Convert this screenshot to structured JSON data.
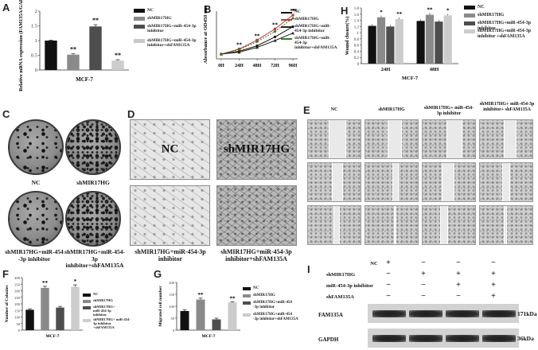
{
  "panel_letters": [
    "A",
    "B",
    "H",
    "C",
    "D",
    "E",
    "F",
    "G",
    "I"
  ],
  "panel_A": {
    "ylabel": "Relative mRNA expression (FAM135A/GAPDH)",
    "xlabel": "MCF-7",
    "stars": [
      "**",
      "**",
      "**"
    ],
    "legend": [
      "NC",
      "shMIR17HG",
      "shMIR17HG+miR-454-3p inhibitor",
      "shMIR17HG+miR-454-3p inhibitor+shFAM135A"
    ],
    "colors": [
      "#111111",
      "#8a8a8a",
      "#4d4d4d",
      "#c8c8c8"
    ]
  },
  "panel_B": {
    "ylabel": "Absorbance at OD450 nm",
    "legend": [
      "NC",
      "shMIR17HG",
      "shMIR17HG+miR-454-3p inhibitor",
      "shMIR17HG+miR-454-3p inhibitor+shFAM135A"
    ],
    "stars": [
      "**",
      "**",
      "**",
      "**",
      "**"
    ]
  },
  "panel_H": {
    "ylabel": "Wound closure(%)",
    "xlabel": "MCF-7",
    "stars": [
      "*",
      "**",
      "**",
      "*"
    ],
    "legend": [
      "NC",
      "shMIR17HG",
      "shMIR17HG+miR-454-3p inhibitor",
      "shMIR17HG+miR-454-3p inhibitor +shFAM135A"
    ]
  },
  "panel_C": {
    "labels": [
      "NC",
      "shMIR17HG",
      "shMIR17HG+miR-454 -3p inhibitor",
      "shMIR17HG+miR-454-3p inhibitor+shFAM135A"
    ]
  },
  "panel_D": {
    "labels": [
      "NC",
      "shMIR17HG",
      "shMIR17HG+miR-454-3p inhibitor",
      "shMIR17HG+miR-454-3p inhibitor+shFAM135A"
    ]
  },
  "panel_E": {
    "headers": [
      "NC",
      "shMIR17HG",
      "shMIR17HG+ miR-454-3p inhibitor",
      "shMIR17HG+ miR-454-3p inhibitor+ shFAM135A"
    ]
  },
  "panel_F": {
    "ylabel": "Number of Colonies",
    "xlabel": "MCF-7",
    "stars": [
      "**",
      "*"
    ],
    "legend": [
      "NC",
      "shMIR17HG",
      "shMIR17HG+ miR-454-3p inhibitor",
      "shMIR17HG+ miR-454-3p inhibitor +shFAM135A"
    ]
  },
  "panel_G": {
    "ylabel": "Migrated cell number",
    "xlabel": "MCF-7",
    "stars": [
      "**",
      "**"
    ],
    "legend": [
      "NC",
      "shMIR17HG",
      "shMIR17HG+miR-454 -3p inhibitor",
      "shMIR17HG+miR-454 -3p inhibitor+shFAM135A"
    ]
  },
  "panel_I": {
    "row_labels": [
      "NC",
      "shMIR17HG",
      "miR-454-3p inhibitor",
      "shFAM135A"
    ],
    "signs": [
      [
        "+",
        "−",
        "−",
        "−"
      ],
      [
        "−",
        "+",
        "+",
        "+"
      ],
      [
        "−",
        "−",
        "+",
        "+"
      ],
      [
        "−",
        "−",
        "−",
        "+"
      ]
    ],
    "proteins": [
      "FAM135A",
      "GAPDH"
    ],
    "sizes": [
      "171kDa",
      "36kDa"
    ]
  },
  "chart_data": [
    {
      "panel": "A",
      "type": "bar",
      "categories": [
        "NC",
        "shMIR17HG",
        "shMIR17HG+miR-454-3p inhibitor",
        "shMIR17HG+miR-454-3p inhibitor+shFAM135A"
      ],
      "values": [
        1.0,
        0.52,
        1.48,
        0.32
      ],
      "errors": [
        0.01,
        0.03,
        0.06,
        0.03
      ],
      "ylim": [
        0,
        2.0
      ],
      "yticks": [
        "0",
        "0.5",
        "1",
        "1.5",
        "2"
      ],
      "xlabel": "MCF-7",
      "ylabel": "Relative mRNA expression (FAM135A/GAPDH)"
    },
    {
      "panel": "B",
      "type": "line",
      "x": [
        "0H",
        "24H",
        "48H",
        "72H",
        "96H"
      ],
      "series": [
        {
          "name": "NC",
          "values": [
            0.3,
            0.48,
            0.82,
            1.38,
            2.02
          ],
          "color": "#111111"
        },
        {
          "name": "shMIR17HG",
          "values": [
            0.3,
            0.62,
            1.18,
            1.88,
            2.75
          ],
          "color": "#c0392b"
        },
        {
          "name": "shMIR17HG+miR-454-3p inhibitor",
          "values": [
            0.3,
            0.42,
            0.72,
            1.15,
            1.62
          ],
          "color": "#222222"
        },
        {
          "name": "shMIR17HG+miR-454-3p inhibitor+shFAM135A",
          "values": [
            0.3,
            0.58,
            1.08,
            1.72,
            2.55
          ],
          "color": "#2e7d32"
        }
      ],
      "ylim": [
        0,
        3
      ],
      "ylabel": "Absorbance at OD450 nm"
    },
    {
      "panel": "H",
      "type": "bar",
      "categories": [
        "24H",
        "48H"
      ],
      "series": [
        {
          "name": "NC",
          "values": [
            1.22,
            1.38
          ],
          "color": "#111111"
        },
        {
          "name": "shMIR17HG",
          "values": [
            1.5,
            1.58
          ],
          "color": "#8a8a8a"
        },
        {
          "name": "shMIR17HG+miR-454-3p inhibitor",
          "values": [
            1.2,
            1.36
          ],
          "color": "#4d4d4d"
        },
        {
          "name": "shMIR17HG+miR-454-3p inhibitor +shFAM135A",
          "values": [
            1.44,
            1.56
          ],
          "color": "#cccccc"
        }
      ],
      "ylim": [
        0,
        1.8
      ],
      "yticks": [
        "0",
        "0.2",
        "0.4",
        "0.6",
        "0.8",
        "1",
        "1.2",
        "1.4",
        "1.6",
        "1.8"
      ],
      "xlabel": "MCF-7",
      "ylabel": "Wound closure(%)"
    },
    {
      "panel": "F",
      "type": "bar",
      "categories": [
        "NC",
        "shMIR17HG",
        "shMIR17HG+ miR-454-3p inhibitor",
        "shMIR17HG+ miR-454-3p inhibitor +shFAM135A"
      ],
      "values": [
        155,
        322,
        172,
        330
      ],
      "errors": [
        8,
        12,
        9,
        15
      ],
      "ylim": [
        0,
        400
      ],
      "yticks": [
        "0",
        "50",
        "100",
        "150",
        "200",
        "250",
        "300",
        "350",
        "400"
      ],
      "xlabel": "MCF-7",
      "ylabel": "Number of Colonies"
    },
    {
      "panel": "G",
      "type": "bar",
      "categories": [
        "NC",
        "shMIR17HG",
        "shMIR17HG+miR-454 -3p inhibitor",
        "shMIR17HG+miR-454 -3p inhibitor+shFAM135A"
      ],
      "values": [
        80,
        128,
        45,
        116
      ],
      "errors": [
        5,
        6,
        5,
        3
      ],
      "ylim": [
        0,
        200
      ],
      "yticks": [
        "0",
        "50",
        "100",
        "150",
        "200"
      ],
      "xlabel": "MCF-7",
      "ylabel": "Migrated cell number"
    }
  ]
}
